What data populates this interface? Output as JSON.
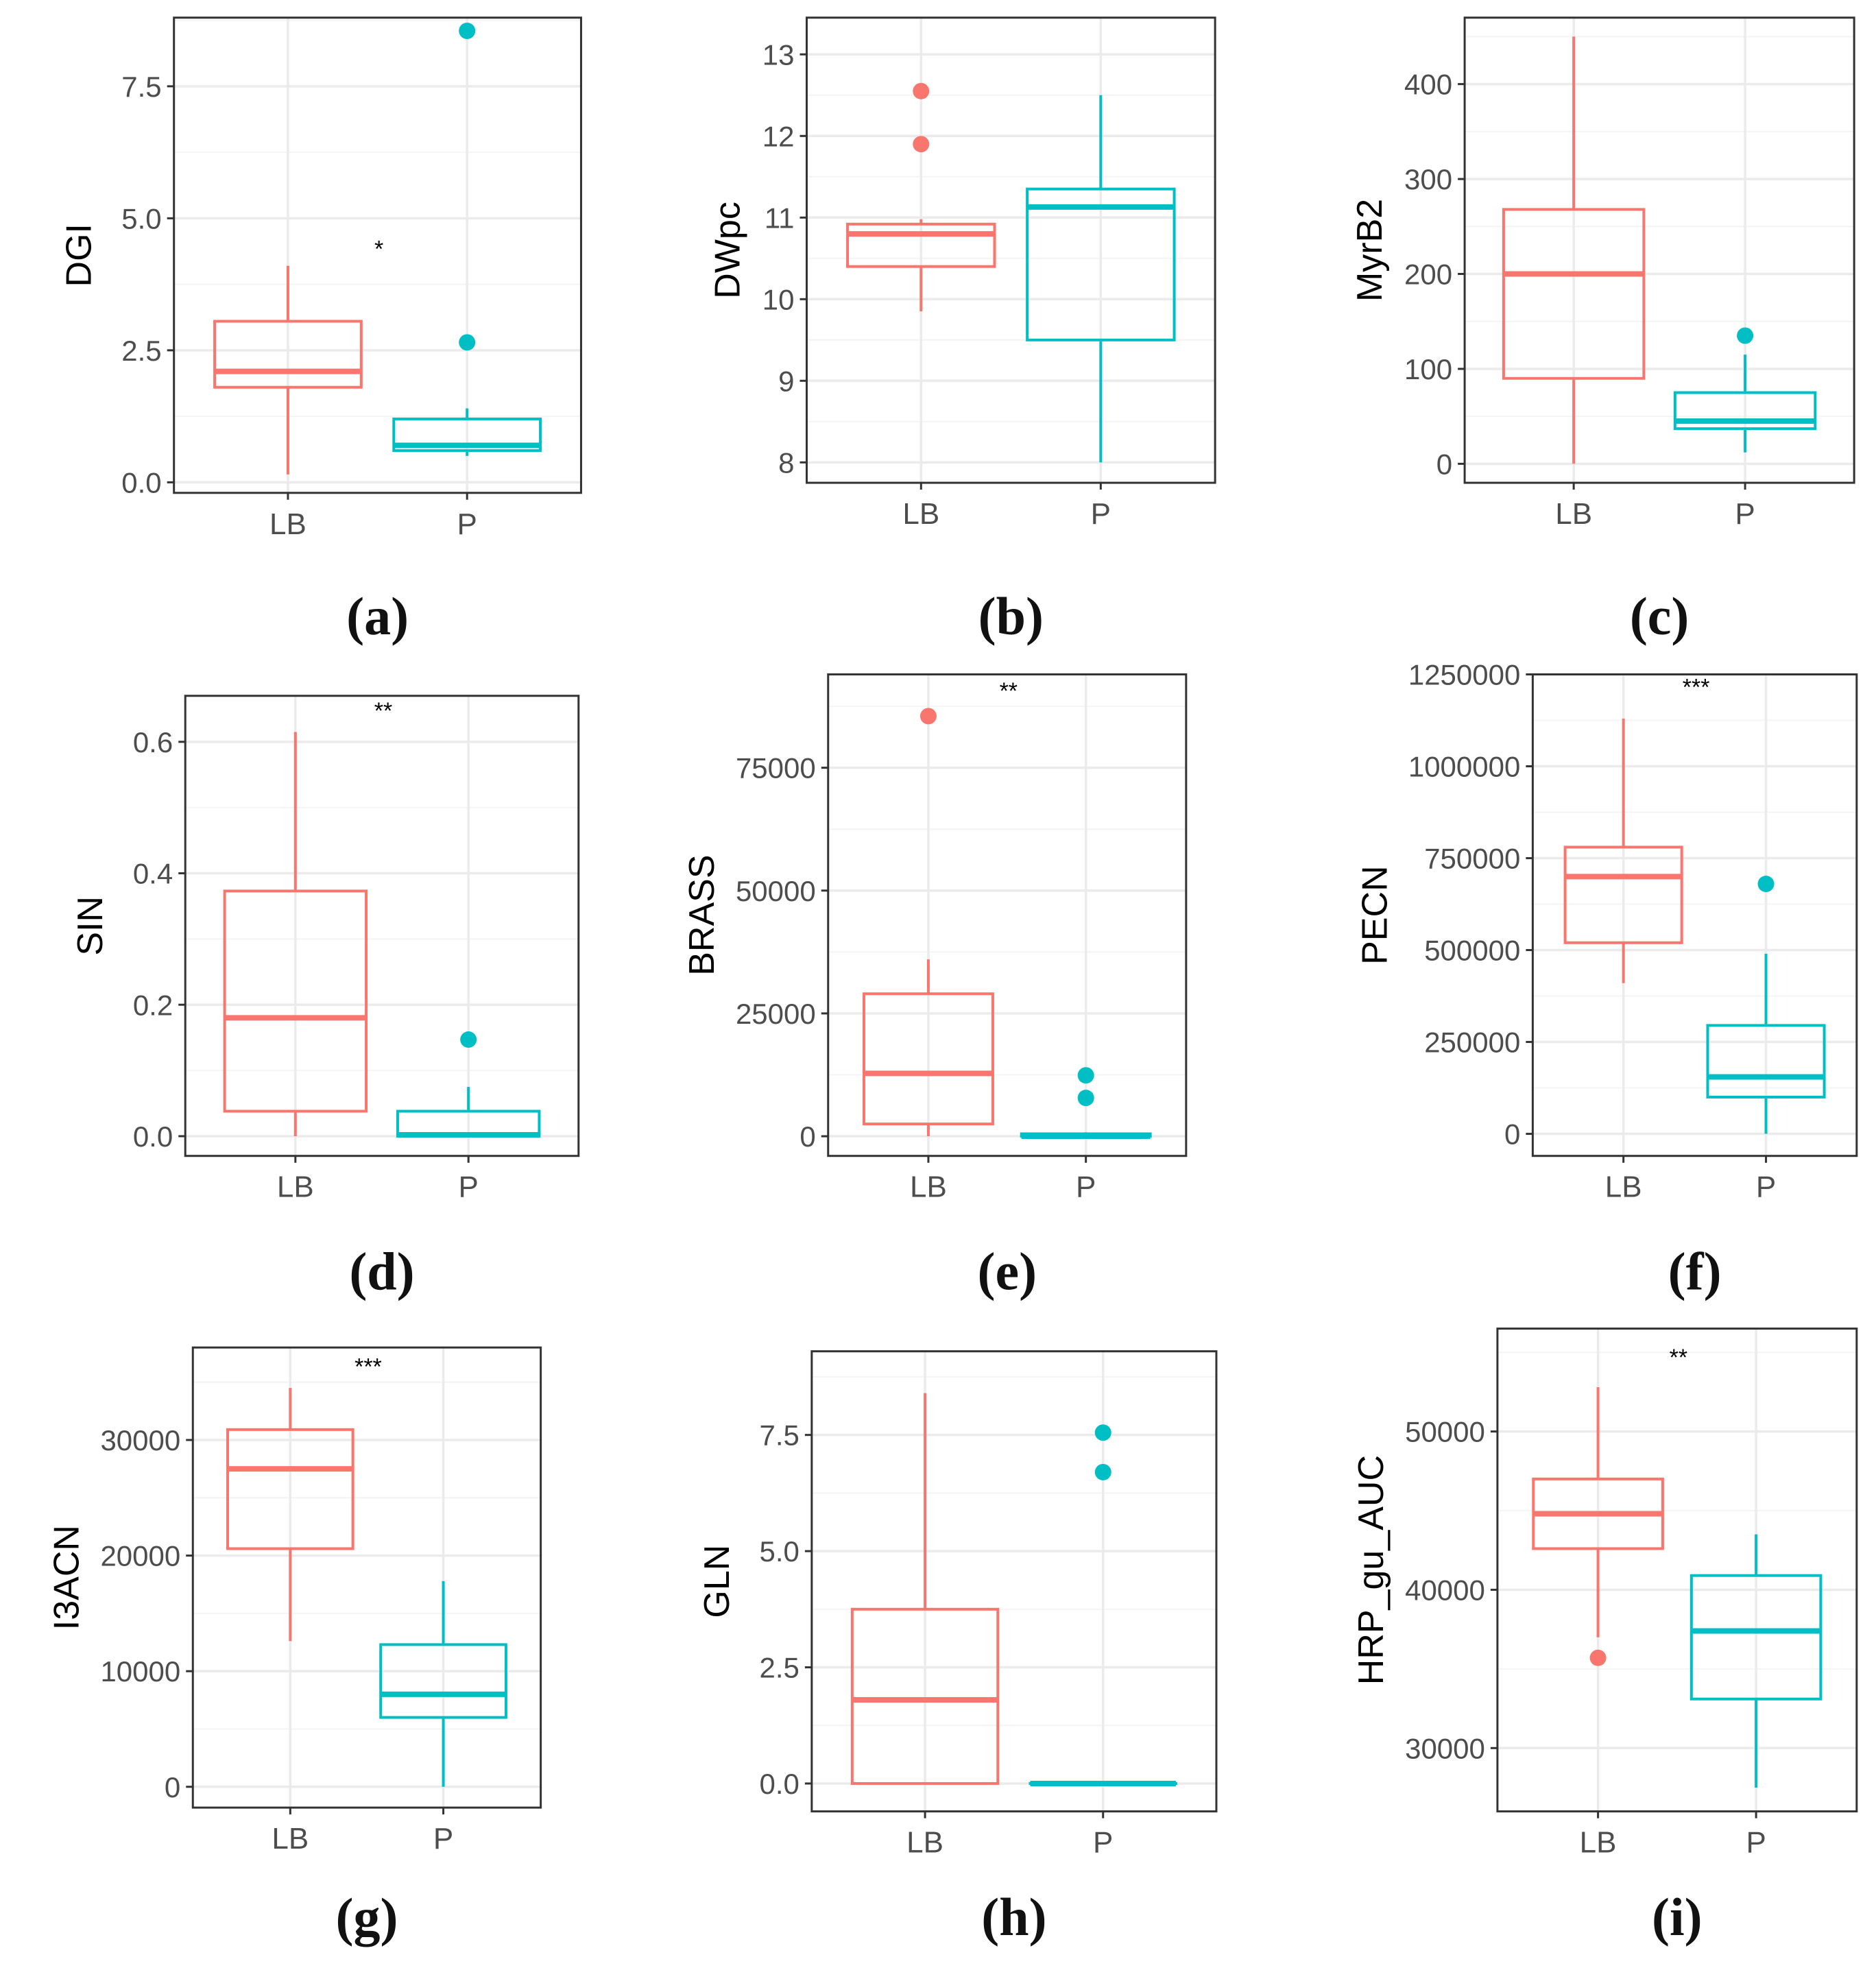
{
  "figure": {
    "colors": {
      "LB": "#F8766D",
      "P": "#00BFC4",
      "panel_bg": "#FFFFFF",
      "grid_major": "#EBEBEB",
      "grid_minor": "#F4F4F4",
      "border": "#333333",
      "tick_text": "#4D4D4D",
      "axis_title": "#000000"
    }
  },
  "chart_data": [
    {
      "type": "box",
      "panel_label": "(a)",
      "ylabel": "DGI",
      "categories": [
        "LB",
        "P"
      ],
      "ylim": [
        -0.2,
        8.8
      ],
      "yticks": [
        0.0,
        2.5,
        5.0,
        7.5
      ],
      "ytick_labels": [
        "0.0",
        "2.5",
        "5.0",
        "7.5"
      ],
      "significance": "*",
      "significance_y": 4.45,
      "boxes": [
        {
          "group": "LB",
          "min": 0.15,
          "q1": 1.8,
          "median": 2.1,
          "q3": 3.05,
          "max": 4.1,
          "outliers": []
        },
        {
          "group": "P",
          "min": 0.5,
          "q1": 0.6,
          "median": 0.7,
          "q3": 1.2,
          "max": 1.4,
          "outliers": [
            2.65,
            8.55
          ]
        }
      ]
    },
    {
      "type": "box",
      "panel_label": "(b)",
      "ylabel": "DWpc",
      "categories": [
        "LB",
        "P"
      ],
      "ylim": [
        7.75,
        13.45
      ],
      "yticks": [
        8,
        9,
        10,
        11,
        12,
        13
      ],
      "ytick_labels": [
        "8",
        "9",
        "10",
        "11",
        "12",
        "13"
      ],
      "significance": "",
      "significance_y": null,
      "boxes": [
        {
          "group": "LB",
          "min": 9.85,
          "q1": 10.4,
          "median": 10.8,
          "q3": 10.92,
          "max": 10.98,
          "outliers": [
            11.9,
            12.55
          ]
        },
        {
          "group": "P",
          "min": 8.0,
          "q1": 9.5,
          "median": 11.13,
          "q3": 11.35,
          "max": 12.5,
          "outliers": []
        }
      ]
    },
    {
      "type": "box",
      "panel_label": "(c)",
      "ylabel": "MyrB2",
      "categories": [
        "LB",
        "P"
      ],
      "ylim": [
        -20,
        470
      ],
      "yticks": [
        0,
        100,
        200,
        300,
        400
      ],
      "ytick_labels": [
        "0",
        "100",
        "200",
        "300",
        "400"
      ],
      "significance": "",
      "significance_y": null,
      "boxes": [
        {
          "group": "LB",
          "min": 0,
          "q1": 90,
          "median": 200,
          "q3": 268,
          "max": 450,
          "outliers": []
        },
        {
          "group": "P",
          "min": 12,
          "q1": 37,
          "median": 45,
          "q3": 75,
          "max": 115,
          "outliers": [
            135
          ]
        }
      ]
    },
    {
      "type": "box",
      "panel_label": "(d)",
      "ylabel": "SIN",
      "categories": [
        "LB",
        "P"
      ],
      "ylim": [
        -0.03,
        0.67
      ],
      "yticks": [
        0.0,
        0.2,
        0.4,
        0.6
      ],
      "ytick_labels": [
        "0.0",
        "0.2",
        "0.4",
        "0.6"
      ],
      "significance": "**",
      "significance_y": 0.65,
      "boxes": [
        {
          "group": "LB",
          "min": 0.0,
          "q1": 0.038,
          "median": 0.18,
          "q3": 0.373,
          "max": 0.615,
          "outliers": []
        },
        {
          "group": "P",
          "min": 0.0,
          "q1": 0.0,
          "median": 0.002,
          "q3": 0.038,
          "max": 0.075,
          "outliers": [
            0.147
          ]
        }
      ]
    },
    {
      "type": "box",
      "panel_label": "(e)",
      "ylabel": "BRASS",
      "categories": [
        "LB",
        "P"
      ],
      "ylim": [
        -4000,
        94000
      ],
      "yticks": [
        0,
        25000,
        50000,
        75000
      ],
      "ytick_labels": [
        "0",
        "25000",
        "50000",
        "75000"
      ],
      "significance": "**",
      "significance_y": 91000,
      "boxes": [
        {
          "group": "LB",
          "min": 0,
          "q1": 2500,
          "median": 12800,
          "q3": 29000,
          "max": 36000,
          "outliers": [
            85500
          ]
        },
        {
          "group": "P",
          "min": 0,
          "q1": 0,
          "median": 0,
          "q3": 500,
          "max": 800,
          "outliers": [
            7800,
            12400
          ]
        }
      ]
    },
    {
      "type": "box",
      "panel_label": "(f)",
      "ylabel": "PECN",
      "categories": [
        "LB",
        "P"
      ],
      "ylim": [
        -60000,
        1250000
      ],
      "yticks": [
        0,
        250000,
        500000,
        750000,
        1000000,
        1250000
      ],
      "ytick_labels": [
        "0",
        "250000",
        "500000",
        "750000",
        "1000000",
        "1250000"
      ],
      "significance": "***",
      "significance_y": 1220000,
      "boxes": [
        {
          "group": "LB",
          "min": 410000,
          "q1": 520000,
          "median": 700000,
          "q3": 780000,
          "max": 1130000,
          "outliers": []
        },
        {
          "group": "P",
          "min": 0,
          "q1": 100000,
          "median": 155000,
          "q3": 295000,
          "max": 490000,
          "outliers": [
            680000
          ]
        }
      ]
    },
    {
      "type": "box",
      "panel_label": "(g)",
      "ylabel": "I3ACN",
      "categories": [
        "LB",
        "P"
      ],
      "ylim": [
        -1800,
        38000
      ],
      "yticks": [
        0,
        10000,
        20000,
        30000
      ],
      "ytick_labels": [
        "0",
        "10000",
        "20000",
        "30000"
      ],
      "significance": "***",
      "significance_y": 36500,
      "boxes": [
        {
          "group": "LB",
          "min": 12600,
          "q1": 20600,
          "median": 27500,
          "q3": 30900,
          "max": 34500,
          "outliers": []
        },
        {
          "group": "P",
          "min": 0,
          "q1": 6000,
          "median": 8000,
          "q3": 12300,
          "max": 17800,
          "outliers": []
        }
      ]
    },
    {
      "type": "box",
      "panel_label": "(h)",
      "ylabel": "GLN",
      "categories": [
        "LB",
        "P"
      ],
      "ylim": [
        -0.6,
        9.3
      ],
      "yticks": [
        0.0,
        2.5,
        5.0,
        7.5
      ],
      "ytick_labels": [
        "0.0",
        "2.5",
        "5.0",
        "7.5"
      ],
      "significance": "",
      "significance_y": null,
      "boxes": [
        {
          "group": "LB",
          "min": 0.0,
          "q1": 0.0,
          "median": 1.8,
          "q3": 3.75,
          "max": 8.4,
          "outliers": []
        },
        {
          "group": "P",
          "min": 0.0,
          "q1": 0.0,
          "median": 0.0,
          "q3": 0.0,
          "max": 0.0,
          "outliers": [
            6.7,
            7.55
          ]
        }
      ]
    },
    {
      "type": "box",
      "panel_label": "(i)",
      "ylabel": "HRP_gu_AUC",
      "categories": [
        "LB",
        "P"
      ],
      "ylim": [
        26000,
        56500
      ],
      "yticks": [
        30000,
        40000,
        50000
      ],
      "ytick_labels": [
        "30000",
        "40000",
        "50000"
      ],
      "significance": "**",
      "significance_y": 54800,
      "boxes": [
        {
          "group": "LB",
          "min": 37000,
          "q1": 42600,
          "median": 44800,
          "q3": 47000,
          "max": 52800,
          "outliers": [
            35700
          ]
        },
        {
          "group": "P",
          "min": 27500,
          "q1": 33100,
          "median": 37400,
          "q3": 40900,
          "max": 43500,
          "outliers": []
        }
      ]
    }
  ]
}
